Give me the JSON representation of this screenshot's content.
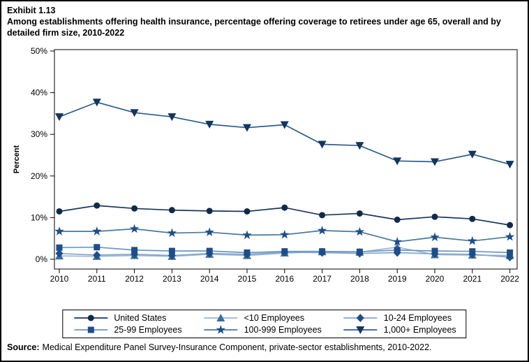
{
  "header": {
    "exhibit": "Exhibit 1.13",
    "title": "Among establishments offering health insurance, percentage offering coverage to retirees under age 65, overall and by detailed firm size, 2010-2022"
  },
  "source": {
    "label": "Source:",
    "text": "Medical Expenditure Panel Survey-Insurance Component, private-sector establishments, 2010-2022."
  },
  "chart_data": {
    "type": "line",
    "title": "Percentage offering coverage to retirees under age 65 by firm size",
    "x": [
      2010,
      2011,
      2012,
      2013,
      2014,
      2015,
      2016,
      2017,
      2018,
      2019,
      2020,
      2021,
      2022
    ],
    "xlabel": "",
    "ylabel": "Percent",
    "ylim": [
      0,
      50
    ],
    "ytick_step": 10,
    "ytick_suffix": "%",
    "grid": false,
    "legend_position": "bottom",
    "series": [
      {
        "key": "united-states",
        "name": "United States",
        "marker": "circle",
        "line_color": "#17365d",
        "marker_color": "#102a4c",
        "values": [
          11.5,
          12.9,
          12.2,
          11.8,
          11.6,
          11.5,
          12.4,
          10.6,
          11.0,
          9.5,
          10.2,
          9.7,
          8.2
        ]
      },
      {
        "key": "lt-10-employees",
        "name": "<10 Employees",
        "marker": "triangle-up",
        "line_color": "#9ab4d4",
        "marker_color": "#3e6d9c",
        "values": [
          0.8,
          0.7,
          0.9,
          0.7,
          1.2,
          0.9,
          1.5,
          1.8,
          1.7,
          2.9,
          1.1,
          1.0,
          0.9
        ]
      },
      {
        "key": "10-24-employees",
        "name": "10-24 Employees",
        "marker": "diamond",
        "line_color": "#84a5c9",
        "marker_color": "#1d4e89",
        "values": [
          1.4,
          1.0,
          1.2,
          0.9,
          1.4,
          1.2,
          1.7,
          1.6,
          1.4,
          1.6,
          1.3,
          1.2,
          0.5
        ]
      },
      {
        "key": "25-99-employees",
        "name": "25-99 Employees",
        "marker": "square",
        "line_color": "#6d96c0",
        "marker_color": "#1d4e89",
        "values": [
          2.8,
          2.9,
          2.2,
          2.0,
          2.0,
          1.6,
          1.9,
          1.9,
          1.8,
          2.2,
          2.0,
          1.9,
          1.6
        ]
      },
      {
        "key": "100-999-employees",
        "name": "100-999 Employees",
        "marker": "star",
        "line_color": "#49779f",
        "marker_color": "#1d4e89",
        "values": [
          6.7,
          6.7,
          7.3,
          6.3,
          6.5,
          5.8,
          5.9,
          6.9,
          6.6,
          4.2,
          5.3,
          4.4,
          5.4
        ]
      },
      {
        "key": "1000-plus-employees",
        "name": "1,000+ Employees",
        "marker": "triangle-down",
        "line_color": "#2b5d8e",
        "marker_color": "#13355e",
        "values": [
          34.2,
          37.7,
          35.2,
          34.2,
          32.4,
          31.6,
          32.3,
          27.6,
          27.3,
          23.6,
          23.4,
          25.2,
          22.8
        ]
      }
    ],
    "legend_order": [
      0,
      1,
      2,
      3,
      4,
      5
    ],
    "draw_order": [
      1,
      2,
      3,
      4,
      5,
      0
    ]
  }
}
